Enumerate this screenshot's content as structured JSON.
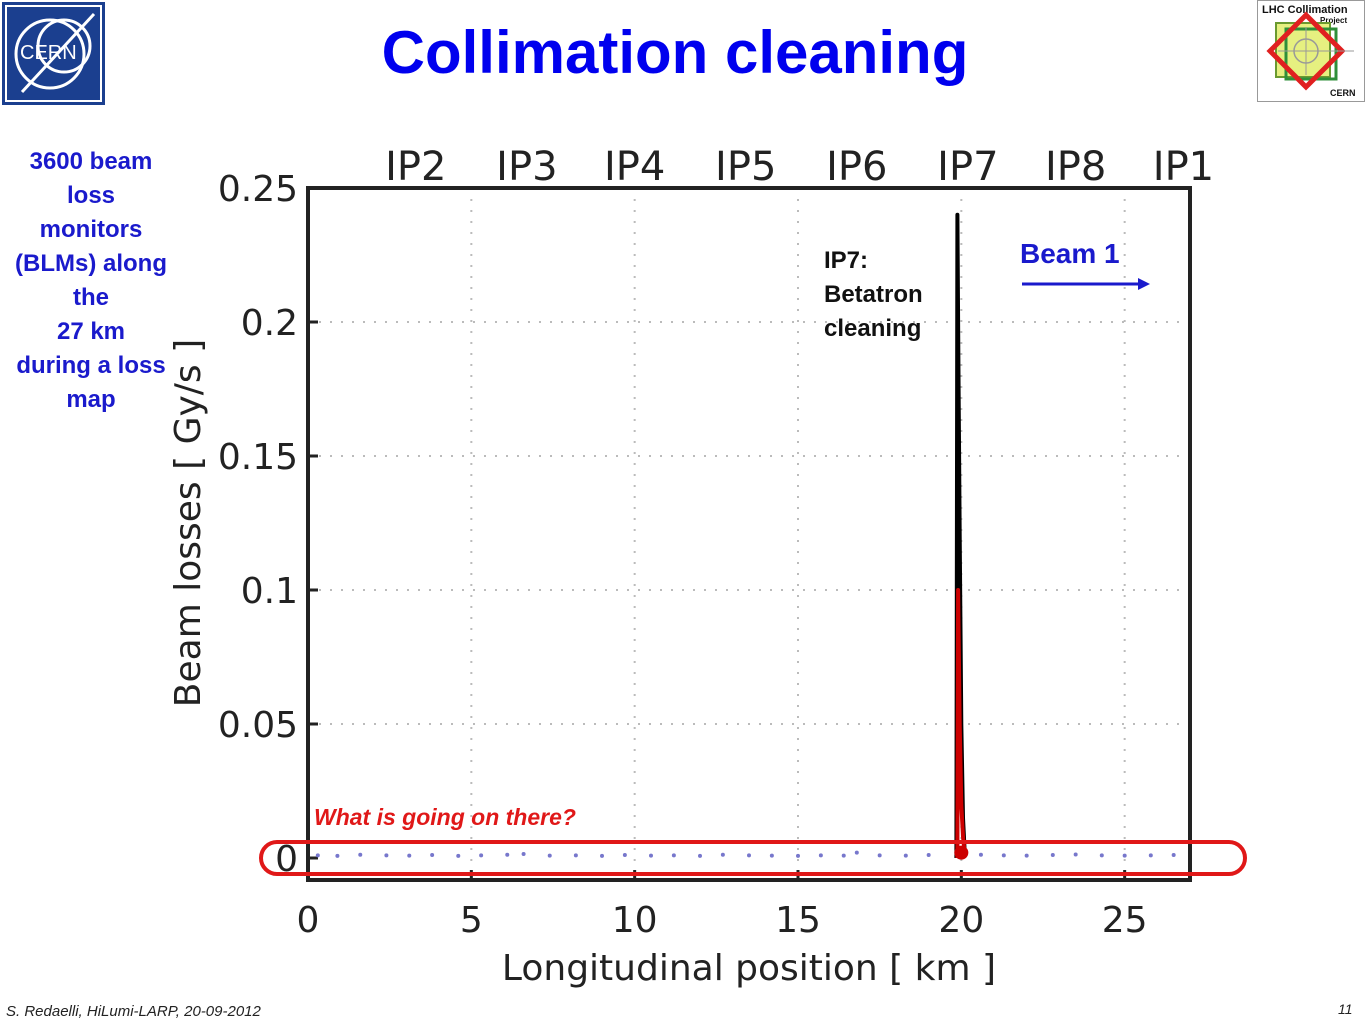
{
  "slide": {
    "title": "Collimation cleaning",
    "footer": "S. Redaelli, HiLumi-LARP, 20-09-2012",
    "page_number": "11",
    "left_note_lines": [
      "3600 beam",
      "loss",
      "monitors",
      "(BLMs) along",
      "the",
      "27 km",
      "during a loss",
      "map"
    ],
    "cern_logo_text": "CERN",
    "lhc_logo_text": [
      "LHC Collimation",
      "Project",
      "CERN"
    ]
  },
  "annotations": {
    "ip7_lines": [
      "IP7:",
      "Betatron",
      "cleaning"
    ],
    "beam_label": "Beam 1",
    "question": "What is going on there?"
  },
  "colors": {
    "title": "#0000ee",
    "note": "#1a1acc",
    "highlight": "#e01818",
    "beam_arrow": "#1a1acc"
  },
  "chart_data": {
    "type": "line",
    "xlabel": "Longitudinal position [ km ]",
    "ylabel": "Beam losses [ Gy/s ]",
    "xlim": [
      0,
      27
    ],
    "ylim": [
      0,
      0.25
    ],
    "x_ticks": [
      0,
      5,
      10,
      15,
      20,
      25
    ],
    "y_ticks": [
      0,
      0.05,
      0.1,
      0.15,
      0.2,
      0.25
    ],
    "x_tick_labels": [
      "0",
      "5",
      "10",
      "15",
      "20",
      "25"
    ],
    "y_tick_labels": [
      "0",
      "0.05",
      "0.1",
      "0.15",
      "0.2",
      "0.25"
    ],
    "grid": true,
    "top_labels": [
      {
        "label": "IP2",
        "x": 3.3
      },
      {
        "label": "IP3",
        "x": 6.7
      },
      {
        "label": "IP4",
        "x": 10.0
      },
      {
        "label": "IP5",
        "x": 13.4
      },
      {
        "label": "IP6",
        "x": 16.8
      },
      {
        "label": "IP7",
        "x": 20.2
      },
      {
        "label": "IP8",
        "x": 23.5
      },
      {
        "label": "IP1",
        "x": 26.8
      }
    ],
    "series": [
      {
        "color": "#000000",
        "x": [
          19.85,
          19.88,
          19.9,
          19.95,
          20.0,
          20.05,
          20.1
        ],
        "y": [
          0.0,
          0.24,
          0.2,
          0.12,
          0.05,
          0.015,
          0.003
        ]
      },
      {
        "color": "#cc0000",
        "x": [
          19.88,
          19.9,
          19.95,
          20.0,
          20.05,
          20.1
        ],
        "y": [
          0.0,
          0.1,
          0.05,
          0.02,
          0.008,
          0.002
        ]
      }
    ],
    "low_level_points": {
      "color": "#7777cc",
      "x": [
        0.3,
        0.9,
        1.6,
        2.4,
        3.1,
        3.8,
        4.6,
        5.3,
        6.1,
        6.6,
        7.4,
        8.2,
        9.0,
        9.7,
        10.5,
        11.2,
        12.0,
        12.7,
        13.5,
        14.2,
        15.0,
        15.7,
        16.4,
        16.8,
        17.5,
        18.3,
        19.0,
        20.6,
        21.3,
        22.0,
        22.8,
        23.5,
        24.3,
        25.0,
        25.8,
        26.5
      ],
      "y": [
        0.001,
        0.0008,
        0.0012,
        0.001,
        0.0009,
        0.0011,
        0.0008,
        0.001,
        0.0012,
        0.0015,
        0.0009,
        0.001,
        0.0008,
        0.0011,
        0.0009,
        0.001,
        0.0008,
        0.0012,
        0.001,
        0.0009,
        0.0008,
        0.001,
        0.0009,
        0.002,
        0.001,
        0.0009,
        0.0011,
        0.0012,
        0.001,
        0.0009,
        0.0011,
        0.0013,
        0.001,
        0.0009,
        0.001,
        0.0011
      ]
    }
  }
}
